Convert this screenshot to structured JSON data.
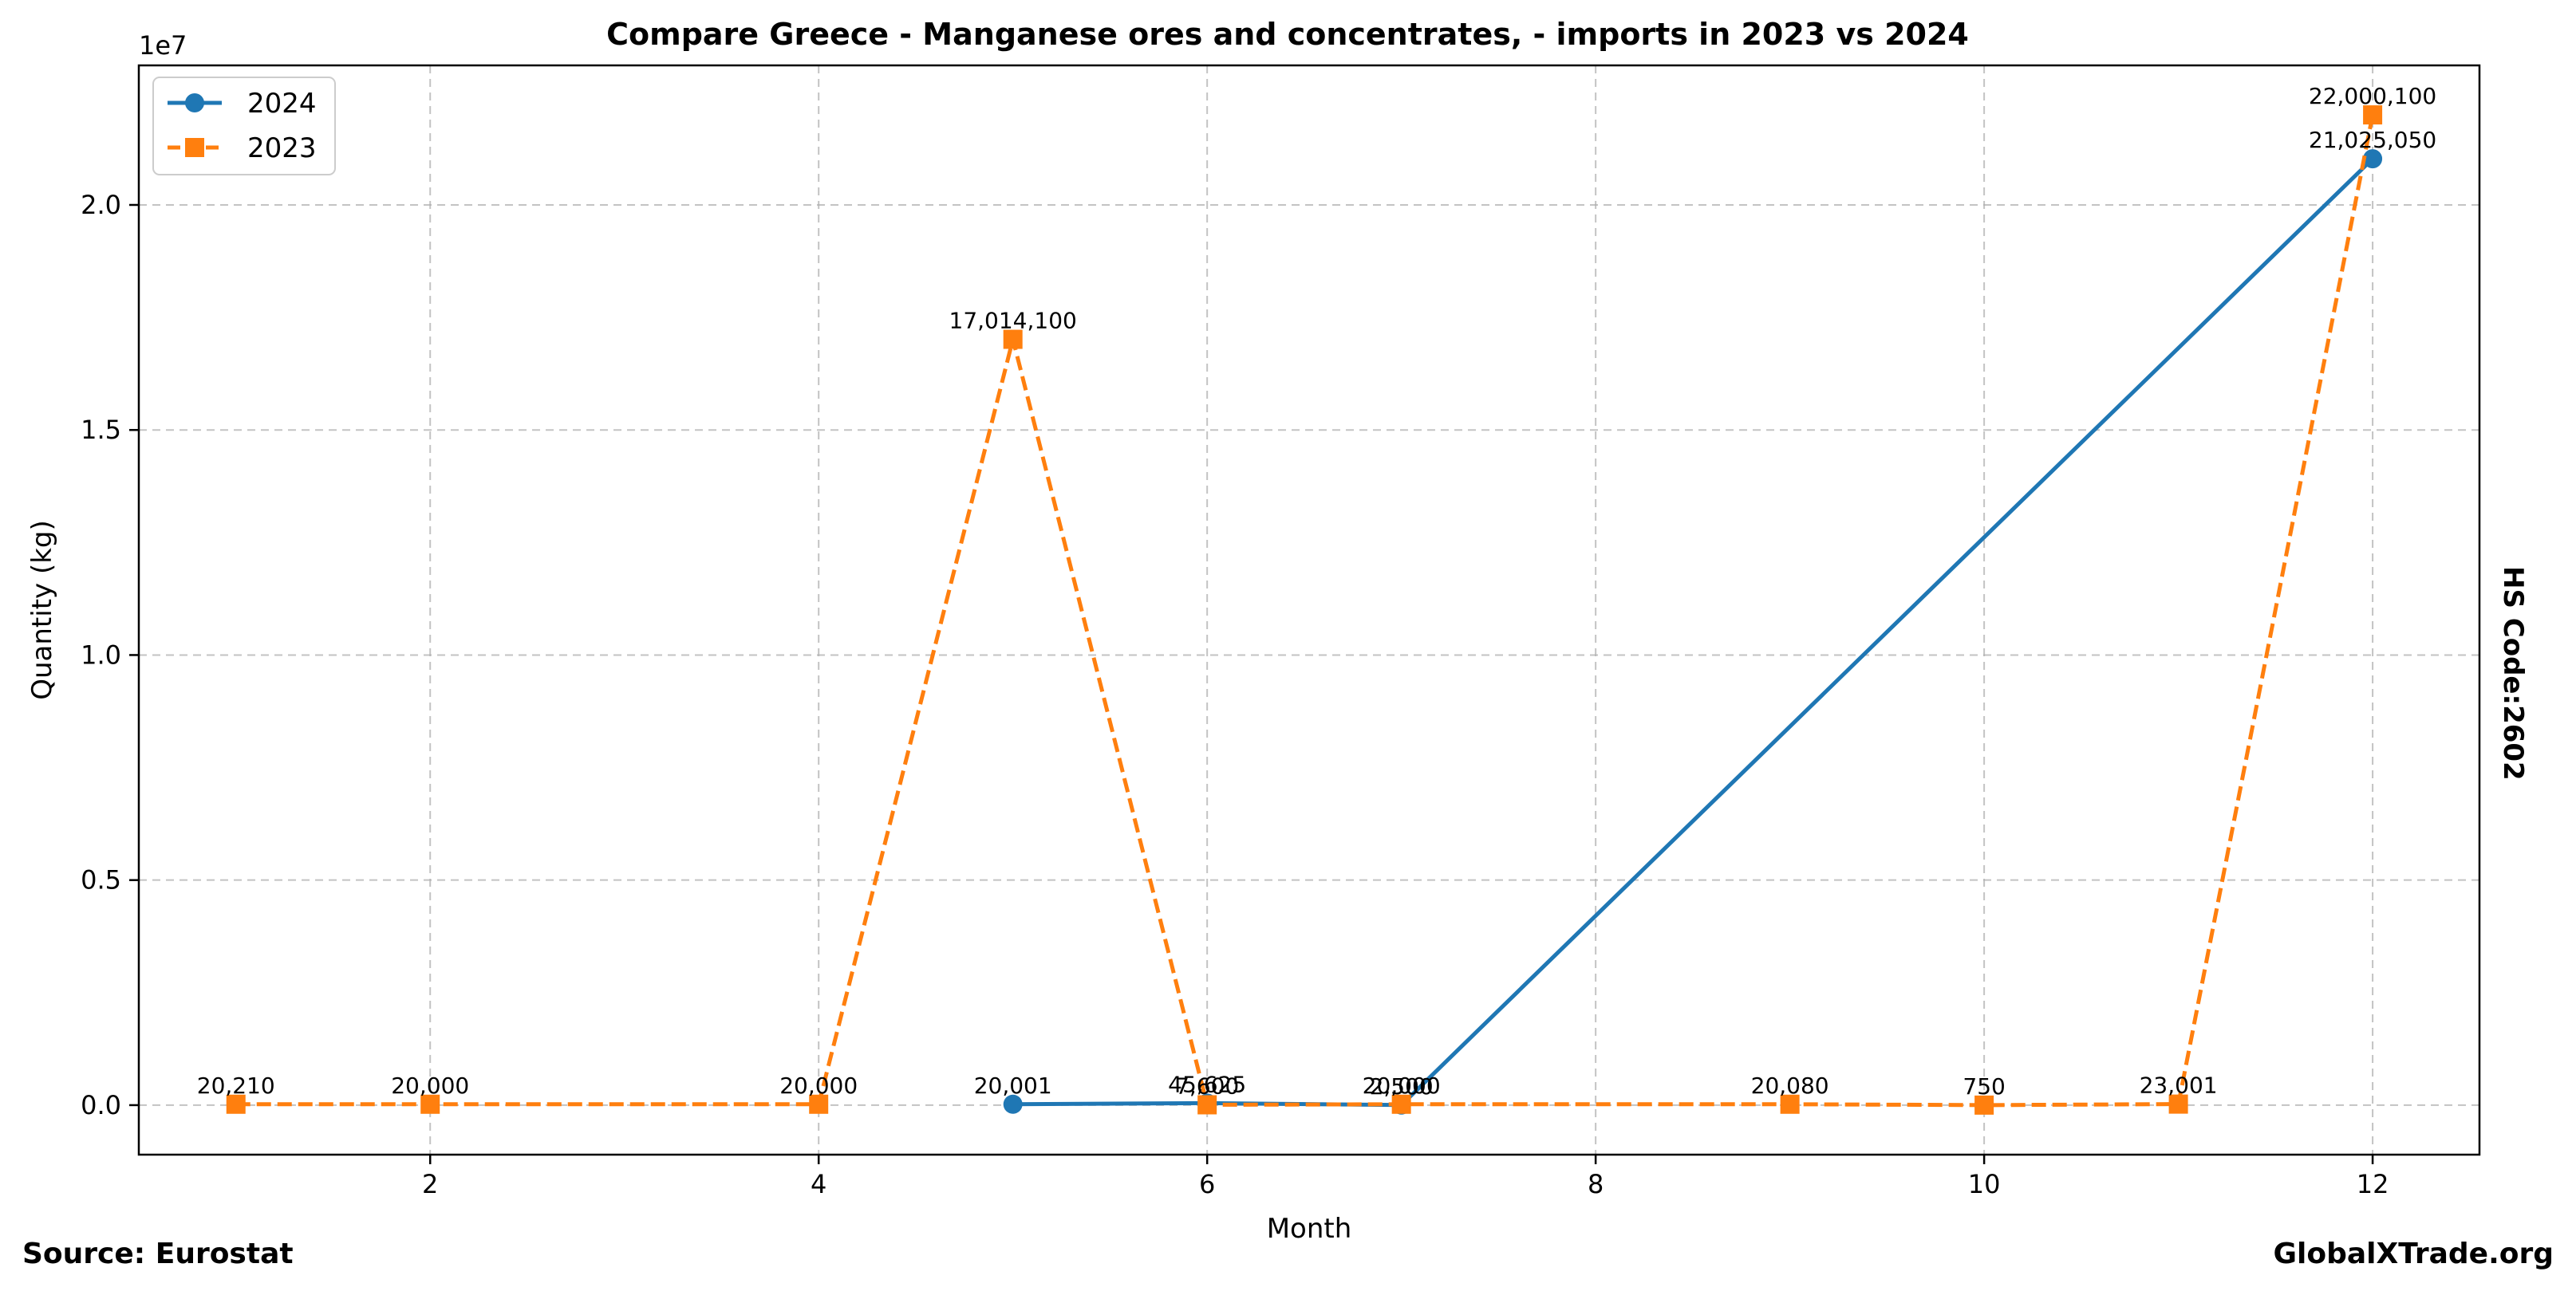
{
  "chart_data": {
    "type": "line",
    "title": "Compare Greece - Manganese ores and concentrates, - imports in 2023 vs 2024",
    "xlabel": "Month",
    "ylabel": "Quantity (kg)",
    "y_multiplier_label": "1e7",
    "xlim": [
      0.5,
      12.55
    ],
    "ylim": [
      -1100000,
      23100000
    ],
    "x_ticks": [
      2,
      4,
      6,
      8,
      10,
      12
    ],
    "y_ticks": [
      0,
      5000000,
      10000000,
      15000000,
      20000000
    ],
    "y_tick_labels": [
      "0.0",
      "0.5",
      "1.0",
      "1.5",
      "2.0"
    ],
    "grid": true,
    "legend_position": "upper-left",
    "series": [
      {
        "name": "2024",
        "color": "#1f77b4",
        "style": "solid",
        "marker": "circle",
        "x": [
          5,
          6,
          7,
          12
        ],
        "values": [
          20001,
          45625,
          2500,
          21025050
        ],
        "labels": [
          "20,001",
          "45,625",
          "2,500",
          "21,025,050"
        ]
      },
      {
        "name": "2023",
        "color": "#ff7f0e",
        "style": "dashed",
        "marker": "square",
        "x": [
          1,
          2,
          4,
          5,
          6,
          7,
          9,
          10,
          11,
          12
        ],
        "values": [
          20210,
          20000,
          20000,
          17014100,
          7600,
          20000,
          20080,
          750,
          23001,
          22000100
        ],
        "labels": [
          "20,210",
          "20,000",
          "20,000",
          "17,014,100",
          "7,600",
          "20,000",
          "20,080",
          "750",
          "23,001",
          "22,000,100"
        ]
      }
    ]
  },
  "source": "Source: Eurostat",
  "site": "GlobalXTrade.org",
  "hs_code": "HS Code:2602"
}
